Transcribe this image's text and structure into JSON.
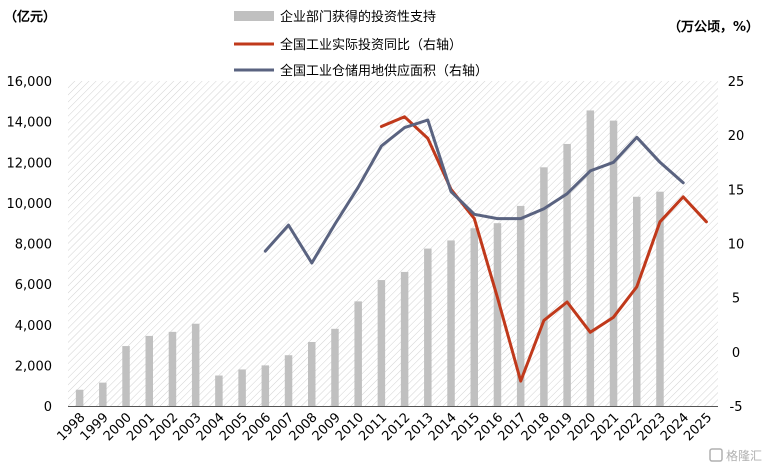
{
  "chart_data": {
    "type": "bar+line",
    "left_unit": "（亿元）",
    "right_unit": "（万公顷，%）",
    "legend_position": "top-center",
    "categories": [
      "1998",
      "1999",
      "2000",
      "2001",
      "2002",
      "2003",
      "2004",
      "2005",
      "2006",
      "2007",
      "2008",
      "2009",
      "2010",
      "2011",
      "2012",
      "2013",
      "2014",
      "2015",
      "2016",
      "2017",
      "2018",
      "2019",
      "2020",
      "2021",
      "2022",
      "2023",
      "2024",
      "2025"
    ],
    "left_axis": {
      "min": 0,
      "max": 16000,
      "ticks": [
        0,
        2000,
        4000,
        6000,
        8000,
        10000,
        12000,
        14000,
        16000
      ],
      "tick_labels": [
        "0",
        "2,000",
        "4,000",
        "6,000",
        "8,000",
        "10,000",
        "12,000",
        "14,000",
        "16,000"
      ]
    },
    "right_axis": {
      "min": -5,
      "max": 25,
      "ticks": [
        -5,
        0,
        5,
        10,
        15,
        20,
        25
      ],
      "tick_labels": [
        "-5",
        "0",
        "5",
        "10",
        "15",
        "20",
        "25"
      ]
    },
    "series": [
      {
        "name": "企业部门获得的投资性支持",
        "kind": "bar",
        "axis": "left",
        "color": "#c0c0c0",
        "values": [
          800,
          1150,
          2950,
          3450,
          3650,
          4050,
          1500,
          1800,
          2000,
          2500,
          3150,
          3800,
          5150,
          6200,
          6600,
          7750,
          8150,
          8750,
          9000,
          9850,
          11750,
          12900,
          14550,
          14050,
          10300,
          10550,
          null,
          null
        ]
      },
      {
        "name": "全国工业实际投资同比（右轴）",
        "kind": "line",
        "axis": "right",
        "color": "#c0391b",
        "values": [
          null,
          null,
          null,
          null,
          null,
          null,
          null,
          null,
          null,
          null,
          null,
          null,
          null,
          20.8,
          21.7,
          19.7,
          15,
          12.3,
          5,
          -2.7,
          2.9,
          4.6,
          1.8,
          3.2,
          6,
          12,
          14.3,
          12
        ]
      },
      {
        "name": "全国工业仓储用地供应面积（右轴）",
        "kind": "line",
        "axis": "right",
        "color": "#5a6380",
        "values": [
          null,
          null,
          null,
          null,
          null,
          null,
          null,
          null,
          9.3,
          11.7,
          8.2,
          11.8,
          15.2,
          19,
          20.7,
          21.4,
          14.8,
          12.7,
          12.3,
          12.3,
          13.2,
          14.6,
          16.7,
          17.5,
          19.8,
          17.5,
          15.6,
          null
        ]
      }
    ]
  },
  "watermark": "格隆汇"
}
